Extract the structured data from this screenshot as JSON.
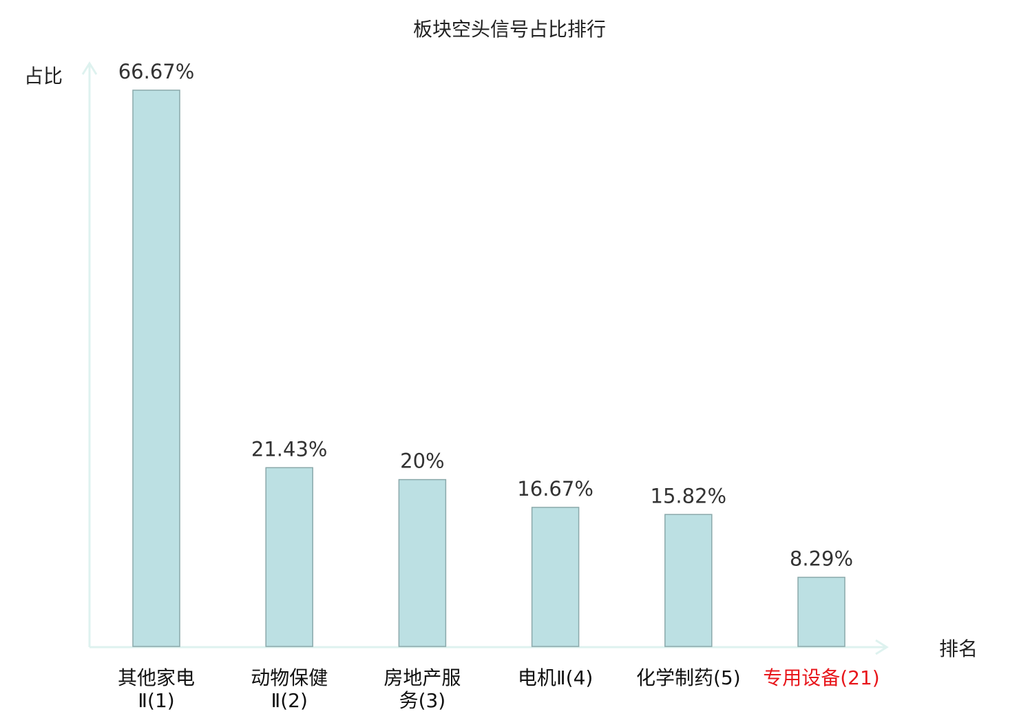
{
  "chart_data": {
    "type": "bar",
    "title": "板块空头信号占比排行",
    "ylabel": "占比",
    "xlabel": "排名",
    "categories": [
      {
        "lines": [
          "其他家电",
          "Ⅱ(1)"
        ],
        "highlight": false
      },
      {
        "lines": [
          "动物保健",
          "Ⅱ(2)"
        ],
        "highlight": false
      },
      {
        "lines": [
          "房地产服",
          "务(3)"
        ],
        "highlight": false
      },
      {
        "lines": [
          "电机Ⅱ(4)"
        ],
        "highlight": false
      },
      {
        "lines": [
          "化学制药(5)"
        ],
        "highlight": false
      },
      {
        "lines": [
          "专用设备(21)"
        ],
        "highlight": true
      }
    ],
    "values": [
      66.67,
      21.43,
      20,
      16.67,
      15.82,
      8.29
    ],
    "value_labels": [
      "66.67%",
      "21.43%",
      "20%",
      "16.67%",
      "15.82%",
      "8.29%"
    ],
    "ylim": [
      0,
      66.67
    ],
    "grid": false,
    "colors": {
      "bar_fill": "#bce0e3",
      "bar_stroke": "#8aa8aa",
      "axis": "#def2ef",
      "highlight_label": "#e8171c",
      "text": "#333333"
    }
  }
}
